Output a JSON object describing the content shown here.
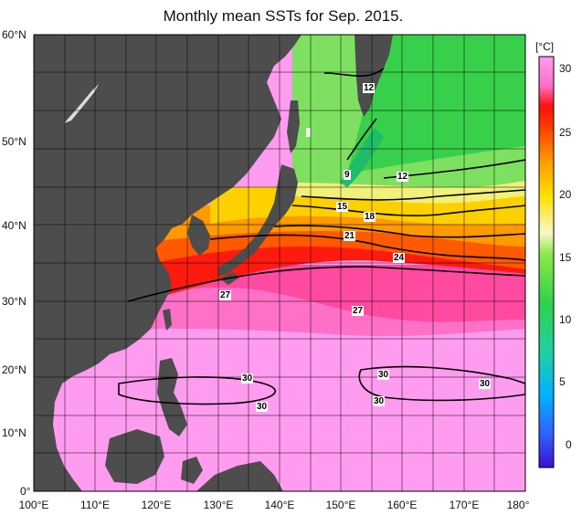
{
  "title": "Monthly mean SSTs for Sep. 2015.",
  "lat_labels": [
    "60°N",
    "50°N",
    "40°N",
    "30°N",
    "20°N",
    "10°N",
    "0°"
  ],
  "lon_labels": [
    "100°E",
    "110°E",
    "120°E",
    "130°E",
    "140°E",
    "150°E",
    "160°E",
    "170°E",
    "180°"
  ],
  "colorbar": {
    "unit": "[°C]",
    "ticks": [
      "30",
      "25",
      "20",
      "15",
      "10",
      "5",
      "0"
    ],
    "colors": [
      "#3d0fd0",
      "#2f5fff",
      "#00b4ff",
      "#20d0a0",
      "#2ed24b",
      "#8ee84a",
      "#f7f7c8",
      "#ffe000",
      "#ffa000",
      "#ff3a00",
      "#ff1010",
      "#ff70c8",
      "#ff9cf0"
    ]
  },
  "contour_labels": [
    "12",
    "9",
    "12",
    "15",
    "18",
    "21",
    "24",
    "27",
    "27",
    "30",
    "30",
    "30",
    "30",
    "30"
  ],
  "colors": {
    "land": "#4d4d4d",
    "grid": "#000000"
  }
}
